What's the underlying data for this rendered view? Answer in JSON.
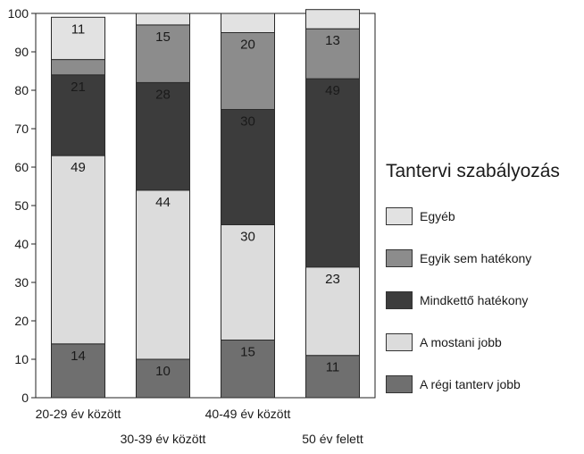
{
  "chart_data": {
    "type": "bar",
    "stacked": true,
    "categories": [
      "20-29 év között",
      "30-39 év között",
      "40-49 év között",
      "50 év felett"
    ],
    "series": [
      {
        "name": "A régi tanterv jobb",
        "color": "#6f6f6f",
        "values": [
          14,
          10,
          15,
          11
        ]
      },
      {
        "name": "A mostani jobb",
        "color": "#dcdcdc",
        "values": [
          49,
          44,
          30,
          23
        ]
      },
      {
        "name": "Mindkettő hatékony",
        "color": "#3c3c3c",
        "values": [
          21,
          28,
          30,
          49
        ]
      },
      {
        "name": "Egyik sem hatékony",
        "color": "#8c8c8c",
        "values": [
          4,
          15,
          20,
          13
        ]
      },
      {
        "name": "Egyéb",
        "color": "#e2e2e2",
        "values": [
          11,
          3,
          5,
          5
        ]
      }
    ],
    "data_labels": [
      [
        "14",
        "49",
        "21",
        "",
        "11"
      ],
      [
        "10",
        "44",
        "28",
        "15",
        ""
      ],
      [
        "15",
        "30",
        "30",
        "20",
        ""
      ],
      [
        "11",
        "23",
        "49",
        "13",
        ""
      ]
    ],
    "ylim": [
      0,
      100
    ],
    "yticks": [
      0,
      10,
      20,
      30,
      40,
      50,
      60,
      70,
      80,
      90,
      100
    ],
    "grid": false,
    "legend": {
      "title": "Tantervi szabályozás",
      "position": "right",
      "items": [
        {
          "label": "Egyéb",
          "color": "#e2e2e2"
        },
        {
          "label": "Egyik sem hatékony",
          "color": "#8c8c8c"
        },
        {
          "label": "Mindkettő hatékony",
          "color": "#3c3c3c"
        },
        {
          "label": "A mostani jobb",
          "color": "#dcdcdc"
        },
        {
          "label": "A régi tanterv jobb",
          "color": "#6f6f6f"
        }
      ]
    }
  }
}
